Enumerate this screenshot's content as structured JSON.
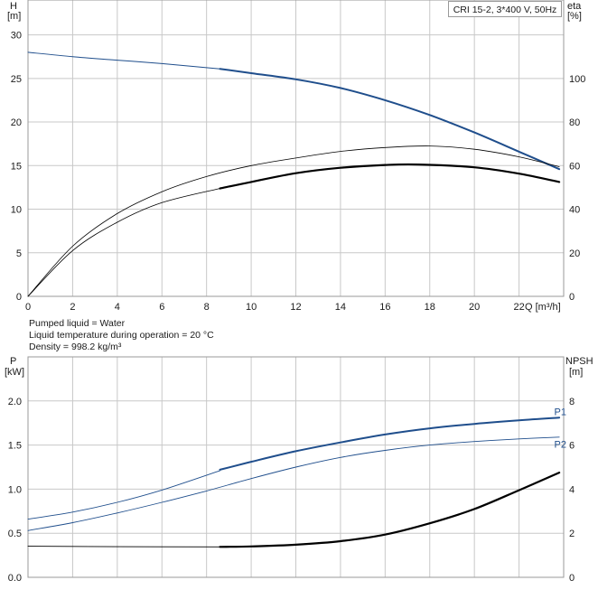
{
  "model_label": "CRI 15-2, 3*400 V, 50Hz",
  "info": {
    "pumped_liquid": "Pumped liquid = Water",
    "liquid_temperature": "Liquid temperature during operation = 20 °C",
    "density": "Density = 998.2 kg/m³"
  },
  "colors": {
    "blue": "#1f4e8c",
    "black": "#000000",
    "grid": "#c8c8c8"
  },
  "chart_data": [
    {
      "type": "line",
      "x_label": "Q [m³/h]",
      "xlim": [
        0,
        24
      ],
      "x_ticks": [
        0,
        2,
        4,
        6,
        8,
        10,
        12,
        14,
        16,
        18,
        20,
        22
      ],
      "y_left_label_line1": "H",
      "y_left_label_line2": "[m]",
      "y_left_lim": [
        0,
        34
      ],
      "y_left_ticks": [
        0,
        5,
        10,
        15,
        20,
        25,
        30
      ],
      "y_right_label_line1": "eta",
      "y_right_label_line2": "[%]",
      "y_right_lim": [
        0,
        136
      ],
      "y_right_ticks": [
        0,
        20,
        40,
        60,
        80,
        100
      ],
      "grid": true,
      "series": [
        {
          "axis": "left",
          "color": "#1f4e8c",
          "width": 1,
          "x": [
            0,
            2,
            4,
            6,
            8.6
          ],
          "y": [
            28,
            27.5,
            27.1,
            26.7,
            26.1
          ]
        },
        {
          "axis": "left",
          "color": "#1f4e8c",
          "width": 2,
          "x": [
            8.6,
            10,
            12,
            14,
            16,
            18,
            20,
            22,
            23.8
          ],
          "y": [
            26.1,
            25.6,
            24.9,
            23.9,
            22.5,
            20.8,
            18.8,
            16.6,
            14.6
          ]
        },
        {
          "axis": "right",
          "color": "#000000",
          "width": 0.8,
          "x": [
            0,
            2,
            4,
            6,
            8,
            10,
            12,
            14,
            16,
            18,
            20,
            22,
            23.8
          ],
          "y": [
            0,
            23,
            38,
            48,
            55,
            60,
            63.5,
            66.5,
            68.3,
            69,
            67.5,
            64,
            59.5
          ]
        },
        {
          "axis": "right",
          "color": "#000000",
          "width": 0.8,
          "x": [
            0,
            2,
            4,
            6,
            8.6
          ],
          "y": [
            0,
            21,
            34,
            43,
            49.5
          ]
        },
        {
          "axis": "right",
          "color": "#000000",
          "width": 2.2,
          "x": [
            8.6,
            10,
            12,
            14,
            16,
            17.5,
            20,
            22,
            23.8
          ],
          "y": [
            49.5,
            52.5,
            56.5,
            59,
            60.3,
            60.5,
            59.2,
            56.3,
            52.5
          ]
        }
      ]
    },
    {
      "type": "line",
      "xlim": [
        0,
        24
      ],
      "y_left_label_line1": "P",
      "y_left_label_line2": "[kW]",
      "y_left_lim": [
        0,
        2.5
      ],
      "y_left_ticks": [
        "0.0",
        "0.5",
        "1.0",
        "1.5",
        "2.0"
      ],
      "y_right_label_line1": "NPSH",
      "y_right_label_line2": "[m]",
      "y_right_lim": [
        0,
        10
      ],
      "y_right_ticks": [
        0,
        2,
        4,
        6,
        8
      ],
      "grid": true,
      "series": [
        {
          "name": "P1",
          "axis": "left",
          "color": "#1f4e8c",
          "width": 0.9,
          "x": [
            0,
            2,
            4,
            6,
            8.6
          ],
          "y": [
            0.66,
            0.74,
            0.85,
            0.99,
            1.21
          ]
        },
        {
          "name": "P1",
          "axis": "left",
          "color": "#1f4e8c",
          "width": 2,
          "x": [
            8.6,
            10,
            12,
            14,
            16,
            18,
            20,
            22,
            23.8
          ],
          "y": [
            1.22,
            1.31,
            1.43,
            1.53,
            1.62,
            1.69,
            1.74,
            1.78,
            1.81
          ]
        },
        {
          "name": "P2",
          "axis": "left",
          "color": "#1f4e8c",
          "width": 0.9,
          "x": [
            0,
            2,
            4,
            6,
            8,
            10,
            12,
            14,
            16,
            18,
            20,
            22,
            23.8
          ],
          "y": [
            0.53,
            0.62,
            0.73,
            0.85,
            0.98,
            1.12,
            1.25,
            1.36,
            1.44,
            1.5,
            1.54,
            1.57,
            1.59
          ]
        },
        {
          "name": "",
          "axis": "right",
          "color": "#000000",
          "width": 0.9,
          "x": [
            0,
            4,
            8.6
          ],
          "y": [
            1.41,
            1.39,
            1.38
          ]
        },
        {
          "name": "",
          "axis": "right",
          "color": "#000000",
          "width": 2.2,
          "x": [
            8.6,
            10,
            12,
            14,
            16,
            18,
            20,
            22,
            23.8
          ],
          "y": [
            1.38,
            1.4,
            1.48,
            1.64,
            1.94,
            2.45,
            3.1,
            3.95,
            4.75
          ]
        }
      ],
      "series_labels": [
        {
          "text": "P1",
          "x": 23.9,
          "y": 1.88
        },
        {
          "text": "P2",
          "x": 23.9,
          "y": 1.51
        }
      ]
    }
  ]
}
